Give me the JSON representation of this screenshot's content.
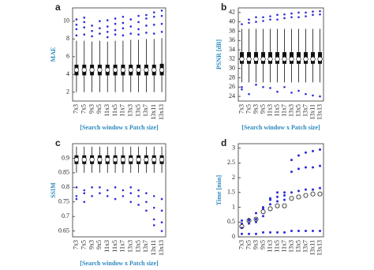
{
  "chart_data": [
    {
      "type": "box",
      "label": "a",
      "ylabel": "MAE",
      "xlabel": "[Search window x Patch size]",
      "categories": [
        "7x3",
        "7x5",
        "9x3",
        "9x5",
        "11x3",
        "11x5",
        "11x7",
        "13x3",
        "13x5",
        "13x7",
        "13x11",
        "13x13"
      ],
      "ylim": [
        1,
        11.5
      ],
      "yticks": [
        2,
        4,
        6,
        8,
        10
      ],
      "whislo": [
        2.0,
        2.0,
        2.0,
        2.0,
        2.0,
        2.0,
        2.0,
        2.0,
        2.0,
        2.0,
        2.0,
        2.0
      ],
      "q1": [
        3.9,
        3.9,
        3.9,
        3.9,
        3.9,
        3.9,
        3.9,
        3.9,
        3.9,
        3.9,
        3.9,
        3.9
      ],
      "med": [
        4.5,
        4.5,
        4.5,
        4.5,
        4.5,
        4.5,
        4.5,
        4.5,
        4.5,
        4.5,
        4.5,
        4.5
      ],
      "q3": [
        5.1,
        5.1,
        5.1,
        5.1,
        5.1,
        5.1,
        5.1,
        5.1,
        5.1,
        5.1,
        5.1,
        5.2
      ],
      "whishi": [
        7.8,
        7.8,
        7.7,
        7.8,
        7.7,
        7.8,
        7.8,
        7.9,
        7.9,
        8.0,
        8.0,
        8.1
      ],
      "outliers": [
        [
          8.4,
          9.1,
          9.6,
          10.2
        ],
        [
          8.5,
          9.3,
          9.9,
          10.4
        ],
        [
          8.3,
          8.9,
          9.5
        ],
        [
          8.6,
          9.2,
          10.0
        ],
        [
          8.2,
          8.8,
          9.4,
          10.1
        ],
        [
          8.5,
          9.0,
          9.7,
          10.3
        ],
        [
          8.4,
          9.2,
          9.8,
          10.5
        ],
        [
          8.6,
          9.4,
          10.2
        ],
        [
          8.5,
          9.1,
          9.9,
          10.6
        ],
        [
          8.7,
          9.5,
          10.3,
          10.7
        ],
        [
          8.6,
          9.6,
          10.5,
          11.0
        ],
        [
          8.8,
          9.7,
          10.6,
          11.2
        ]
      ],
      "color": "#2b2bd9"
    },
    {
      "type": "box",
      "label": "b",
      "ylabel": "PSNR [dB]",
      "xlabel": "[Search window x Patch size]",
      "categories": [
        "7x3",
        "7x5",
        "9x3",
        "9x5",
        "11x3",
        "11x5",
        "11x7",
        "13x3",
        "13x5",
        "13x7",
        "13x11",
        "13x13"
      ],
      "ylim": [
        23,
        43
      ],
      "yticks": [
        24,
        26,
        28,
        30,
        32,
        34,
        36,
        38,
        40,
        42
      ],
      "whislo": [
        27,
        27,
        27,
        27,
        27,
        27,
        27,
        27,
        27,
        27,
        27,
        27
      ],
      "q1": [
        31,
        31,
        31,
        31,
        31,
        31,
        31,
        31,
        31,
        31,
        31,
        31
      ],
      "med": [
        32,
        32,
        32,
        32,
        32,
        32,
        32,
        32,
        32,
        32,
        32,
        32
      ],
      "q3": [
        33.5,
        33.5,
        33.5,
        33.5,
        33.5,
        33.5,
        33.5,
        33.5,
        33.5,
        33.5,
        33.5,
        33.5
      ],
      "whishi": [
        38.5,
        38.5,
        38.5,
        38.5,
        38.5,
        38.5,
        38.5,
        38.5,
        38.5,
        38.5,
        38.5,
        38.5
      ],
      "outliers": [
        [
          25.5,
          26,
          39.5
        ],
        [
          24.5,
          39.8,
          40.5
        ],
        [
          26.5,
          40,
          41
        ],
        [
          26,
          40.2,
          41
        ],
        [
          25.8,
          40.5,
          41.2
        ],
        [
          25,
          40.5,
          41.5
        ],
        [
          26,
          40.8,
          41.6
        ],
        [
          24.8,
          41,
          41.8
        ],
        [
          25.2,
          41,
          42
        ],
        [
          24.5,
          41.2,
          42
        ],
        [
          24.2,
          41.5,
          42.2
        ],
        [
          24,
          41.6,
          42.3
        ]
      ],
      "color": "#2b2bd9"
    },
    {
      "type": "box",
      "label": "c",
      "ylabel": "SSIM",
      "xlabel": "[Search window x Patch size]",
      "categories": [
        "7x3",
        "7x5",
        "9x3",
        "9x5",
        "11x3",
        "11x5",
        "11x7",
        "13x3",
        "13x5",
        "13x7",
        "13x11",
        "13x13"
      ],
      "ylim": [
        0.63,
        0.95
      ],
      "yticks": [
        0.65,
        0.7,
        0.75,
        0.8,
        0.85,
        0.9
      ],
      "whislo": [
        0.85,
        0.85,
        0.85,
        0.85,
        0.85,
        0.85,
        0.85,
        0.85,
        0.85,
        0.85,
        0.85,
        0.85
      ],
      "q1": [
        0.88,
        0.88,
        0.88,
        0.88,
        0.88,
        0.88,
        0.88,
        0.88,
        0.88,
        0.88,
        0.88,
        0.88
      ],
      "med": [
        0.895,
        0.895,
        0.895,
        0.895,
        0.895,
        0.895,
        0.895,
        0.895,
        0.895,
        0.895,
        0.895,
        0.895
      ],
      "q3": [
        0.91,
        0.91,
        0.91,
        0.91,
        0.91,
        0.91,
        0.91,
        0.91,
        0.91,
        0.91,
        0.91,
        0.91
      ],
      "whishi": [
        0.94,
        0.94,
        0.94,
        0.94,
        0.94,
        0.94,
        0.94,
        0.94,
        0.94,
        0.94,
        0.94,
        0.94
      ],
      "outliers": [
        [
          0.8,
          0.77,
          0.76
        ],
        [
          0.79,
          0.78,
          0.75
        ],
        [
          0.8,
          0.77
        ],
        [
          0.8,
          0.78
        ],
        [
          0.79,
          0.77
        ],
        [
          0.8,
          0.76
        ],
        [
          0.79,
          0.77
        ],
        [
          0.8,
          0.78,
          0.75
        ],
        [
          0.79,
          0.77,
          0.74
        ],
        [
          0.78,
          0.75,
          0.72
        ],
        [
          0.77,
          0.73,
          0.69,
          0.67
        ],
        [
          0.76,
          0.72,
          0.68,
          0.65
        ]
      ],
      "color": "#2b2bd9"
    },
    {
      "type": "scatter",
      "label": "d",
      "ylabel": "Time [min]",
      "categories": [
        "7x3",
        "7x5",
        "9x3",
        "9x5",
        "11x3",
        "11x5",
        "11x7",
        "13x3",
        "13x5",
        "13x7",
        "13x11",
        "13x13"
      ],
      "ylim": [
        0,
        3.15
      ],
      "yticks": [
        0,
        0.5,
        1,
        1.5,
        2,
        2.5,
        3
      ],
      "series": [
        {
          "color": "#2b2bd9",
          "marker": "dot",
          "values": [
            0.55,
            0.6,
            0.8,
            1.0,
            1.3,
            1.5,
            1.5,
            2.6,
            2.75,
            2.85,
            2.9,
            2.95
          ]
        },
        {
          "color": "#2b2bd9",
          "marker": "dot",
          "values": [
            0.45,
            0.55,
            0.6,
            0.95,
            1.25,
            1.35,
            1.4,
            2.2,
            2.3,
            2.35,
            2.35,
            2.4
          ]
        },
        {
          "color": "#2b2bd9",
          "marker": "dot",
          "values": [
            0.3,
            0.45,
            0.5,
            0.7,
            1.1,
            1.2,
            1.25,
            1.5,
            1.55,
            1.6,
            1.6,
            1.65
          ]
        },
        {
          "color": "#333333",
          "marker": "ring",
          "values": [
            0.35,
            0.55,
            0.6,
            0.85,
            0.95,
            1.05,
            1.05,
            1.3,
            1.35,
            1.4,
            1.45,
            1.45
          ]
        },
        {
          "color": "#2b2bd9",
          "marker": "dot",
          "values": [
            0.1,
            0.1,
            0.1,
            0.15,
            0.15,
            0.15,
            0.15,
            0.2,
            0.2,
            0.2,
            0.2,
            0.2
          ]
        }
      ]
    }
  ]
}
